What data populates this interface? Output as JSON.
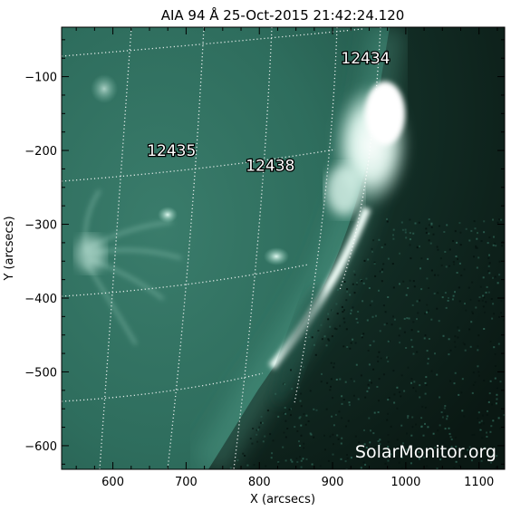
{
  "title": "AIA 94 Å 25-Oct-2015 21:42:24.120",
  "x_axis": {
    "label": "X (arcsecs)",
    "ticks": [
      600,
      700,
      800,
      900,
      1000,
      1100
    ],
    "range": [
      530,
      1135
    ]
  },
  "y_axis": {
    "label": "Y (arcsecs)",
    "ticks": [
      -100,
      -200,
      -300,
      -400,
      -500,
      -600
    ],
    "range": [
      -632,
      -33
    ]
  },
  "active_regions": [
    {
      "label": "12434",
      "x": 945,
      "y": -75
    },
    {
      "label": "12435",
      "x": 680,
      "y": -200
    },
    {
      "label": "12438",
      "x": 815,
      "y": -220
    }
  ],
  "watermark": "SolarMonitor.org",
  "colors": {
    "image_base": "#2f6e5f",
    "image_dark": "#1b3f35",
    "off_limb": "#0c1c17",
    "limb_glow": "#f2fff9",
    "grid": "#ffffff"
  }
}
